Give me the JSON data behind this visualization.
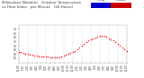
{
  "title": "Milwaukee Weather Outdoor Temperature vs Heat Index per Minute (24 Hours)",
  "title_fontsize": 3.0,
  "title_color": "#333333",
  "bg_color": "#ffffff",
  "plot_bg_color": "#ffffff",
  "legend_temp_color": "#0000cc",
  "legend_heat_color": "#cc0000",
  "tick_color": "#333333",
  "grid_color": "#aaaaaa",
  "dot_color": "#ff0000",
  "ylim": [
    50,
    95
  ],
  "yticks": [
    55,
    60,
    65,
    70,
    75,
    80,
    85,
    90
  ],
  "scatter_size": 1.2,
  "figsize": [
    1.6,
    0.87
  ],
  "dpi": 100,
  "xtick_fontsize": 2.0,
  "ytick_fontsize": 2.2,
  "data_x": [
    0,
    30,
    60,
    90,
    120,
    150,
    180,
    210,
    240,
    270,
    300,
    330,
    360,
    390,
    420,
    450,
    480,
    510,
    540,
    570,
    600,
    630,
    660,
    690,
    720,
    750,
    780,
    810,
    840,
    870,
    900,
    930,
    960,
    990,
    1020,
    1050,
    1080,
    1110,
    1140,
    1170,
    1200,
    1230,
    1260,
    1290,
    1320,
    1350,
    1380,
    1410,
    1440
  ],
  "data_y": [
    63,
    62,
    61,
    60,
    60,
    59,
    59,
    58,
    58,
    57,
    57,
    57,
    57,
    57,
    56,
    56,
    56,
    56,
    56,
    57,
    58,
    59,
    60,
    61,
    62,
    64,
    66,
    68,
    70,
    72,
    74,
    76,
    78,
    79,
    80,
    81,
    82,
    82,
    82,
    81,
    79,
    78,
    76,
    74,
    72,
    70,
    68,
    66,
    64
  ],
  "note": "scatter plot with red dots, white background, dashed vertical grid lines"
}
